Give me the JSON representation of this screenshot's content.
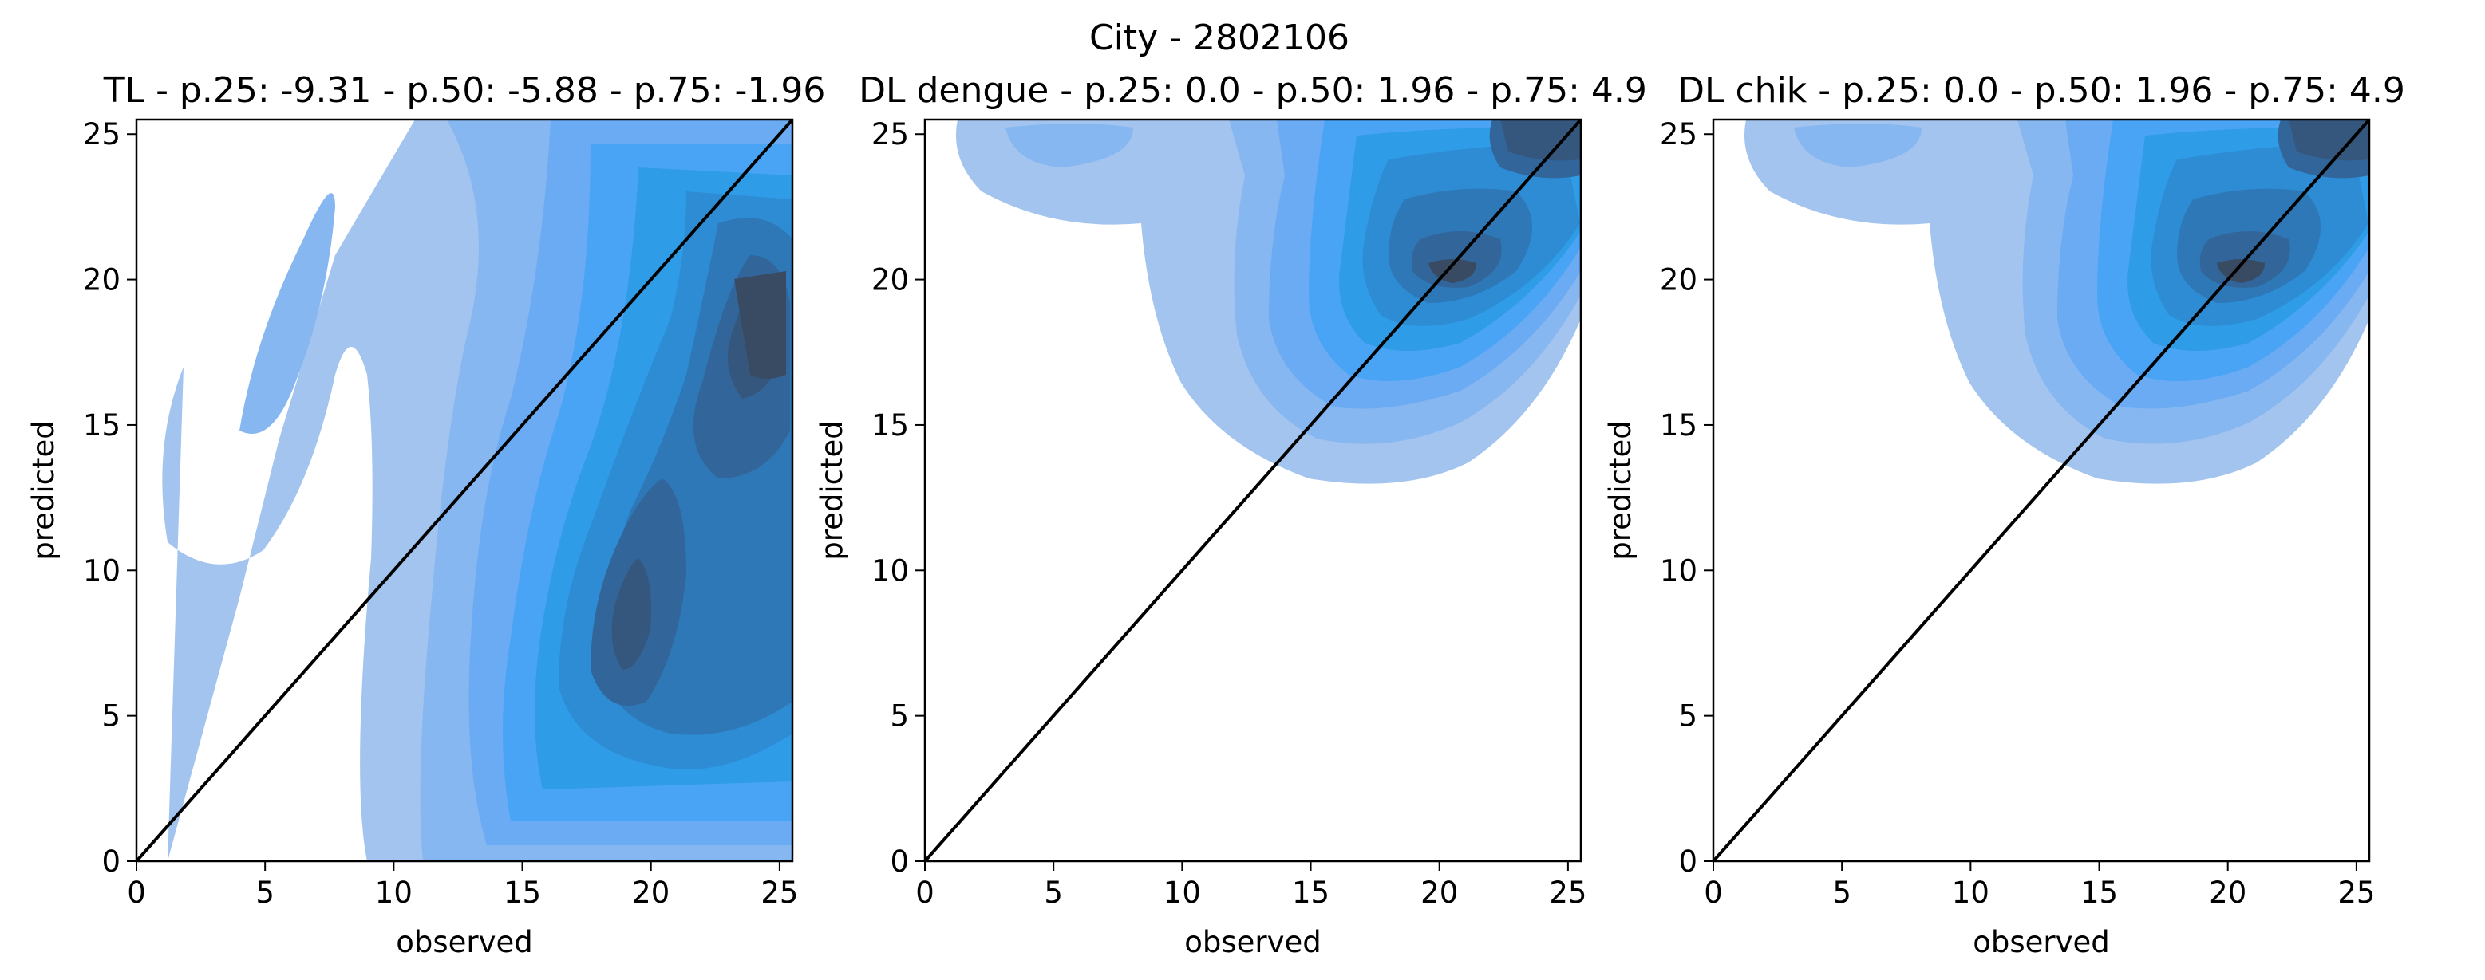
{
  "figure": {
    "suptitle": "City - 2802106"
  },
  "chart_data": [
    {
      "type": "kde",
      "title": "TL - p.25: -9.31 - p.50: -5.88 - p.75: -1.96",
      "xlabel": "observed",
      "ylabel": "predicted",
      "xlim": [
        0,
        25.5
      ],
      "ylim": [
        0,
        25.5
      ],
      "xticks": [
        0,
        5,
        10,
        15,
        20,
        25
      ],
      "yticks": [
        0,
        5,
        10,
        15,
        20,
        25
      ],
      "grid": false,
      "fill_color": "#1f8ef1",
      "reference_line": {
        "from": [
          0,
          0
        ],
        "to": [
          25.5,
          25.5
        ],
        "color": "#000000"
      },
      "density_peaks": [
        {
          "x": 17,
          "y": 7,
          "level": 7
        },
        {
          "x": 24,
          "y": 19,
          "level": 7
        },
        {
          "x": 6,
          "y": 19,
          "level": 2
        }
      ]
    },
    {
      "type": "kde",
      "title": "DL dengue - p.25: 0.0 - p.50: 1.96 - p.75: 4.9",
      "xlabel": "observed",
      "ylabel": "predicted",
      "xlim": [
        0,
        25.5
      ],
      "ylim": [
        0,
        25.5
      ],
      "xticks": [
        0,
        5,
        10,
        15,
        20,
        25
      ],
      "yticks": [
        0,
        5,
        10,
        15,
        20,
        25
      ],
      "grid": false,
      "fill_color": "#1f8ef1",
      "reference_line": {
        "from": [
          0,
          0
        ],
        "to": [
          25.5,
          25.5
        ],
        "color": "#000000"
      },
      "density_peaks": [
        {
          "x": 18.5,
          "y": 19,
          "level": 8
        },
        {
          "x": 24.5,
          "y": 25,
          "level": 7
        }
      ]
    },
    {
      "type": "kde",
      "title": "DL chik - p.25: 0.0 - p.50: 1.96 - p.75: 4.9",
      "xlabel": "observed",
      "ylabel": "predicted",
      "xlim": [
        0,
        25.5
      ],
      "ylim": [
        0,
        25.5
      ],
      "xticks": [
        0,
        5,
        10,
        15,
        20,
        25
      ],
      "yticks": [
        0,
        5,
        10,
        15,
        20,
        25
      ],
      "grid": false,
      "fill_color": "#1f8ef1",
      "reference_line": {
        "from": [
          0,
          0
        ],
        "to": [
          25.5,
          25.5
        ],
        "color": "#000000"
      },
      "density_peaks": [
        {
          "x": 18.5,
          "y": 19,
          "level": 8
        },
        {
          "x": 24.5,
          "y": 25,
          "level": 7
        }
      ]
    }
  ]
}
